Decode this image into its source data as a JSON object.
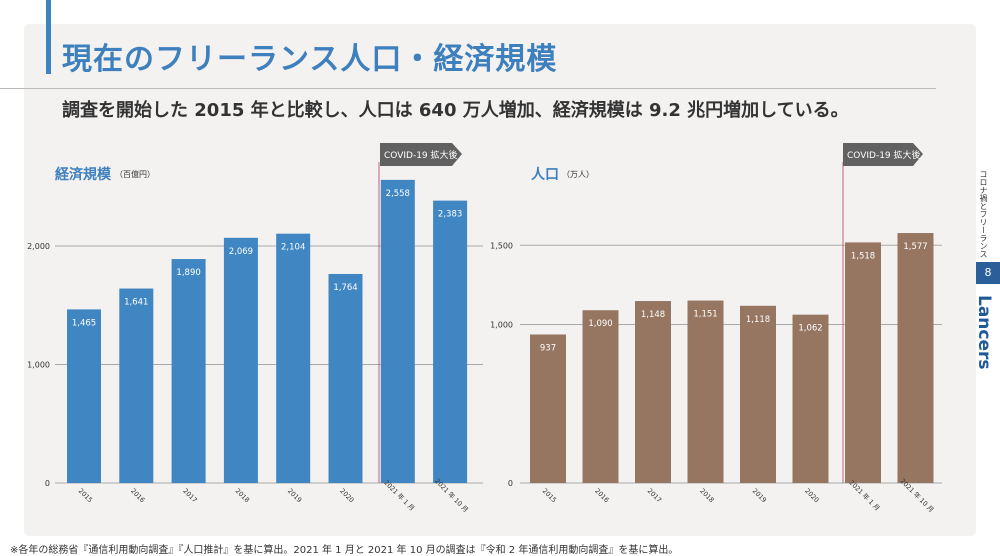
{
  "header": {
    "title": "現在のフリーランス人口・経済規模",
    "subtitle": "調査を開始した 2015 年と比較し、人口は 640 万人増加、経済規模は 9.2 兆円増加している。"
  },
  "side": {
    "section_label": "コロナ禍とフリーランス",
    "page_number": "8",
    "logo": "Lancers"
  },
  "footnote": "※各年の総務省『通信利用動向調査』『人口推計』を基に算出。2021 年 1 月と 2021 年 10 月の調査は『令和 2 年通信利用動向調査』を基に算出。",
  "colors": {
    "economic_bar": "#3f86c3",
    "population_bar": "#967561",
    "covid_line": "#c4607a",
    "covid_arrow": "#616161"
  },
  "chart_data": [
    {
      "type": "bar",
      "title": "経済規模",
      "unit": "（百億円）",
      "categories": [
        "2015",
        "2016",
        "2017",
        "2018",
        "2019",
        "2020",
        "2021 年 1 月",
        "2021 年 10 月"
      ],
      "values": [
        1465,
        1641,
        1890,
        2069,
        2104,
        1764,
        2558,
        2383
      ],
      "value_labels": [
        "1,465",
        "1,641",
        "1,890",
        "2,069",
        "2,104",
        "1,764",
        "2,558",
        "2,383"
      ],
      "yticks": [
        "0",
        "1,000",
        "2,000"
      ],
      "ytick_values": [
        0,
        1000,
        2000
      ],
      "ylim": [
        0,
        2700
      ],
      "grid": true,
      "annotation": "COVID-19 拡大後"
    },
    {
      "type": "bar",
      "title": "人口",
      "unit": "（万人）",
      "categories": [
        "2015",
        "2016",
        "2017",
        "2018",
        "2019",
        "2020",
        "2021 年 1 月",
        "2021 年 10 月"
      ],
      "values": [
        937,
        1090,
        1148,
        1151,
        1118,
        1062,
        1518,
        1577
      ],
      "value_labels": [
        "937",
        "1,090",
        "1,148",
        "1,151",
        "1,118",
        "1,062",
        "1,518",
        "1,577"
      ],
      "yticks": [
        "0",
        "1,000",
        "1,500"
      ],
      "ytick_values": [
        0,
        1000,
        1500
      ],
      "ylim": [
        0,
        1700
      ],
      "grid": true,
      "annotation": "COVID-19 拡大後"
    }
  ]
}
